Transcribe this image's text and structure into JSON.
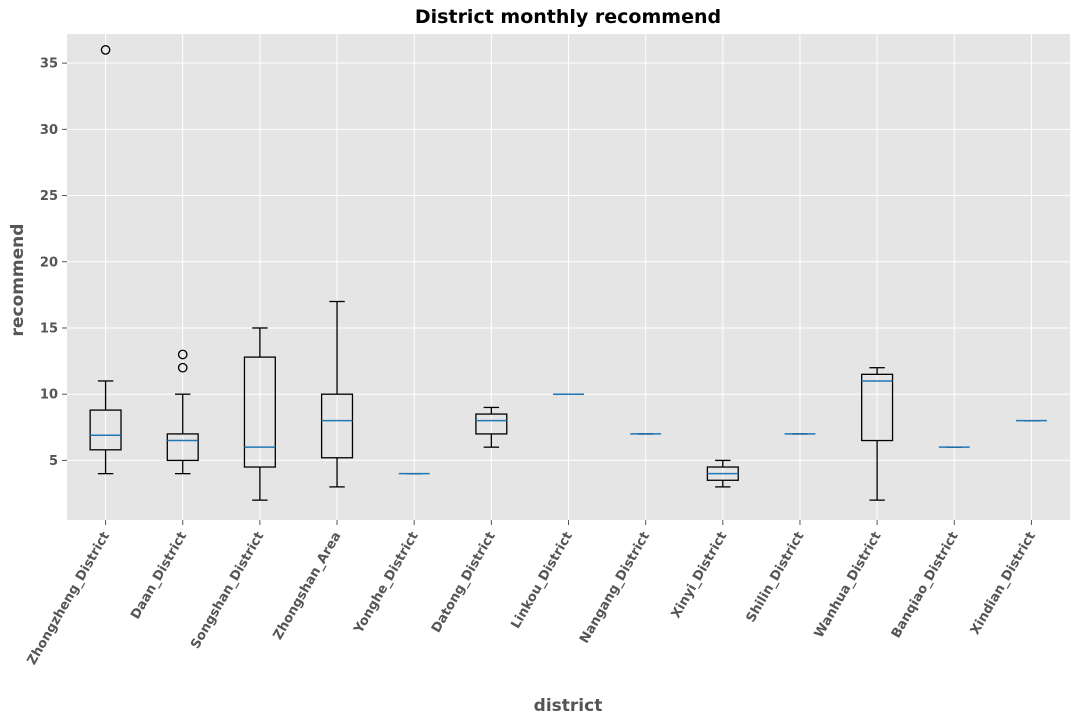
{
  "chart_data": {
    "type": "boxplot",
    "title": "District monthly recommend",
    "xlabel": "district",
    "ylabel": "recommend",
    "ylim": [
      0.5,
      37.2
    ],
    "yticks": [
      5,
      10,
      15,
      20,
      25,
      30,
      35
    ],
    "grid": true,
    "categories": [
      "Zhongzheng_District",
      "Daan_District",
      "Songshan_District",
      "Zhongshan_Area",
      "Yonghe_District",
      "Datong_District",
      "Linkou_District",
      "Nangang_District",
      "Xinyi_District",
      "Shilin_District",
      "Wanhua_District",
      "Banqiao_District",
      "Xindian_District"
    ],
    "boxes": [
      {
        "whislo": 4,
        "q1": 5.8,
        "med": 6.9,
        "q3": 8.8,
        "whishi": 11,
        "fliers": [
          36
        ]
      },
      {
        "whislo": 4,
        "q1": 5,
        "med": 6.5,
        "q3": 7,
        "whishi": 10,
        "fliers": [
          12,
          13
        ]
      },
      {
        "whislo": 2,
        "q1": 4.5,
        "med": 6,
        "q3": 12.8,
        "whishi": 15,
        "fliers": []
      },
      {
        "whislo": 3,
        "q1": 5.2,
        "med": 8,
        "q3": 10,
        "whishi": 17,
        "fliers": []
      },
      {
        "whislo": 4,
        "q1": 4,
        "med": 4,
        "q3": 4,
        "whishi": 4,
        "fliers": []
      },
      {
        "whislo": 6,
        "q1": 7,
        "med": 8,
        "q3": 8.5,
        "whishi": 9,
        "fliers": []
      },
      {
        "whislo": 10,
        "q1": 10,
        "med": 10,
        "q3": 10,
        "whishi": 10,
        "fliers": []
      },
      {
        "whislo": 7,
        "q1": 7,
        "med": 7,
        "q3": 7,
        "whishi": 7,
        "fliers": []
      },
      {
        "whislo": 3,
        "q1": 3.5,
        "med": 4,
        "q3": 4.5,
        "whishi": 5,
        "fliers": []
      },
      {
        "whislo": 7,
        "q1": 7,
        "med": 7,
        "q3": 7,
        "whishi": 7,
        "fliers": []
      },
      {
        "whislo": 2,
        "q1": 6.5,
        "med": 11,
        "q3": 11.5,
        "whishi": 12,
        "fliers": []
      },
      {
        "whislo": 6,
        "q1": 6,
        "med": 6,
        "q3": 6,
        "whishi": 6,
        "fliers": []
      },
      {
        "whislo": 8,
        "q1": 8,
        "med": 8,
        "q3": 8,
        "whishi": 8,
        "fliers": []
      }
    ],
    "colors": {
      "background": "#e5e5e5",
      "grid": "#ffffff",
      "box": "#000000",
      "median": "#1f77b4"
    }
  }
}
